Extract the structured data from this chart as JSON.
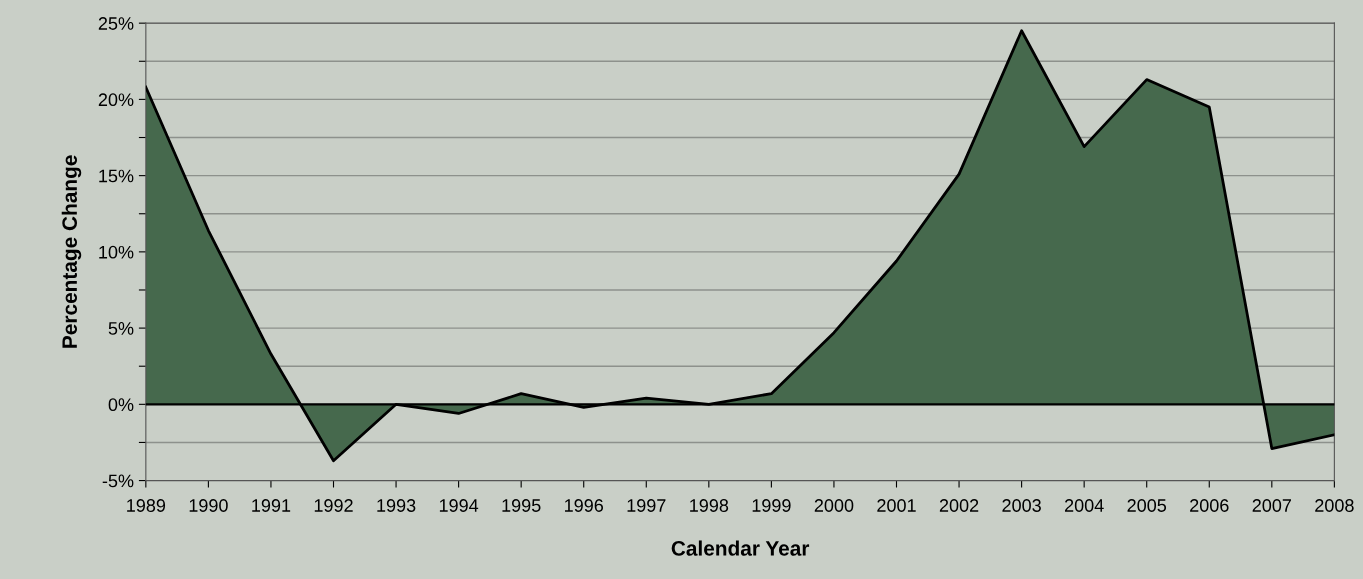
{
  "chart_data": {
    "type": "area",
    "xlabel": "Calendar Year",
    "ylabel": "Percentage Change",
    "categories": [
      "1989",
      "1990",
      "1991",
      "1992",
      "1993",
      "1994",
      "1995",
      "1996",
      "1997",
      "1998",
      "1999",
      "2000",
      "2001",
      "2002",
      "2003",
      "2004",
      "2005",
      "2006",
      "2007",
      "2008"
    ],
    "series": [
      {
        "color": "#46694d",
        "values": [
          20.8,
          11.4,
          3.3,
          -3.7,
          0,
          -0.6,
          0.7,
          -0.2,
          0.4,
          0,
          0.7,
          4.7,
          9.4,
          15.1,
          24.5,
          16.9,
          21.3,
          19.5,
          -2.9,
          -2.0
        ]
      }
    ],
    "ylim": [
      -5,
      25
    ],
    "yticks": [
      {
        "value": -5,
        "label": "-5%"
      },
      {
        "value": -2.5,
        "label": null
      },
      {
        "value": 0,
        "label": "0%"
      },
      {
        "value": 2.5,
        "label": null
      },
      {
        "value": 5,
        "label": "5%"
      },
      {
        "value": 7.5,
        "label": null
      },
      {
        "value": 10,
        "label": "10%"
      },
      {
        "value": 12.5,
        "label": null
      },
      {
        "value": 15,
        "label": "15%"
      },
      {
        "value": 17.5,
        "label": null
      },
      {
        "value": 20,
        "label": "20%"
      },
      {
        "value": 22.5,
        "label": null
      },
      {
        "value": 25,
        "label": "25%"
      }
    ],
    "grid": "y",
    "legend": false
  }
}
